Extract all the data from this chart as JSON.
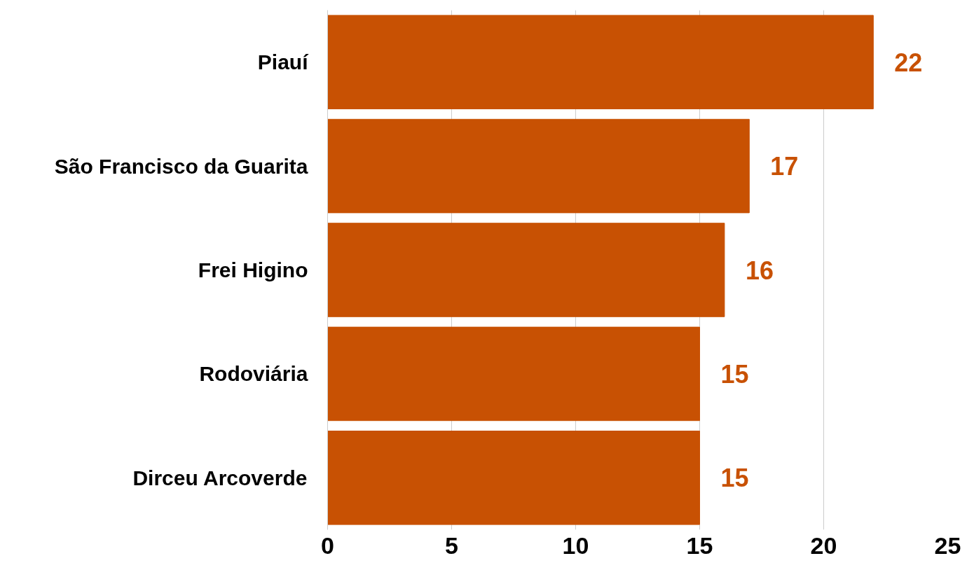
{
  "chart_data": {
    "type": "bar",
    "orientation": "horizontal",
    "categories": [
      "Piauí",
      "São Francisco da Guarita",
      "Frei Higino",
      "Rodoviária",
      "Dirceu Arcoverde"
    ],
    "values": [
      22,
      17,
      16,
      15,
      15
    ],
    "color": "#c85103",
    "xlim": [
      0,
      25
    ],
    "xticks": [
      0,
      5,
      10,
      15,
      20,
      25
    ],
    "grid": "x",
    "data_labels": true
  }
}
